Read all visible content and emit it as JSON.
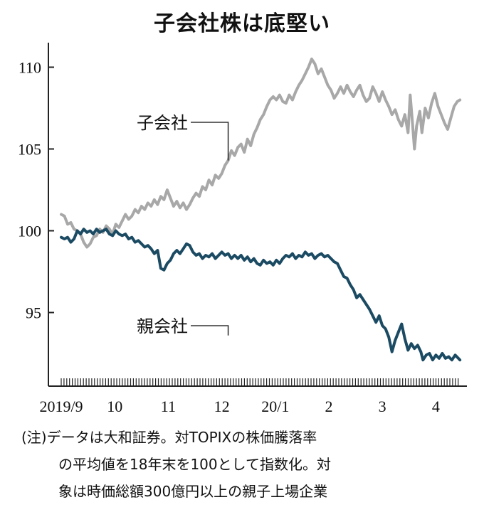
{
  "title": "子会社株は底堅い",
  "colors": {
    "subsidiary": "#a8a8a8",
    "parent": "#1b4a63",
    "axis": "#222222",
    "leader": "#333333"
  },
  "note": {
    "line1": "(注)データは大和証券。対TOPIXの株価騰落率",
    "line2": "の平均値を18年末を100として指数化。対",
    "line3": "象は時価総額300億円以上の親子上場企業"
  },
  "chart_data": {
    "type": "line",
    "title": "子会社株は底堅い",
    "xlabel": "",
    "ylabel": "",
    "ylim": [
      90.5,
      111.5
    ],
    "yticks": [
      95,
      100,
      105,
      110
    ],
    "ytick_labels": [
      "95",
      "100",
      "105",
      "110"
    ],
    "xlim": [
      0,
      7.58
    ],
    "xticks": [
      {
        "x": 0,
        "label": "2019/9"
      },
      {
        "x": 1,
        "label": "10"
      },
      {
        "x": 2,
        "label": "11"
      },
      {
        "x": 3,
        "label": "12"
      },
      {
        "x": 4,
        "label": "20/1"
      },
      {
        "x": 5,
        "label": "2"
      },
      {
        "x": 6,
        "label": "3"
      },
      {
        "x": 7,
        "label": "4"
      }
    ],
    "grid": false,
    "legend": "none (series labeled directly on chart)",
    "series": [
      {
        "name": "子会社",
        "color_key": "subsidiary",
        "label_at": {
          "x": 3.12,
          "y": 104.3
        },
        "points": [
          [
            0.0,
            101.0
          ],
          [
            0.06,
            100.9
          ],
          [
            0.12,
            100.4
          ],
          [
            0.18,
            100.5
          ],
          [
            0.24,
            100.1
          ],
          [
            0.3,
            100.0
          ],
          [
            0.36,
            99.8
          ],
          [
            0.42,
            99.3
          ],
          [
            0.48,
            99.0
          ],
          [
            0.54,
            99.2
          ],
          [
            0.6,
            99.6
          ],
          [
            0.66,
            99.7
          ],
          [
            0.72,
            100.1
          ],
          [
            0.78,
            99.9
          ],
          [
            0.84,
            100.3
          ],
          [
            0.9,
            100.1
          ],
          [
            0.96,
            99.8
          ],
          [
            1.02,
            100.4
          ],
          [
            1.08,
            100.2
          ],
          [
            1.14,
            100.6
          ],
          [
            1.2,
            101.0
          ],
          [
            1.26,
            100.7
          ],
          [
            1.32,
            100.9
          ],
          [
            1.38,
            101.3
          ],
          [
            1.44,
            101.1
          ],
          [
            1.5,
            101.5
          ],
          [
            1.56,
            101.3
          ],
          [
            1.62,
            101.7
          ],
          [
            1.68,
            101.5
          ],
          [
            1.74,
            101.9
          ],
          [
            1.8,
            101.6
          ],
          [
            1.86,
            102.1
          ],
          [
            1.92,
            101.9
          ],
          [
            1.98,
            102.5
          ],
          [
            2.04,
            102.0
          ],
          [
            2.1,
            101.5
          ],
          [
            2.16,
            101.8
          ],
          [
            2.22,
            101.4
          ],
          [
            2.28,
            101.7
          ],
          [
            2.34,
            101.3
          ],
          [
            2.4,
            101.6
          ],
          [
            2.46,
            102.0
          ],
          [
            2.52,
            102.3
          ],
          [
            2.58,
            102.1
          ],
          [
            2.64,
            102.7
          ],
          [
            2.7,
            102.5
          ],
          [
            2.76,
            103.1
          ],
          [
            2.82,
            102.8
          ],
          [
            2.88,
            103.4
          ],
          [
            2.94,
            103.2
          ],
          [
            3.0,
            103.5
          ],
          [
            3.06,
            104.0
          ],
          [
            3.12,
            104.3
          ],
          [
            3.18,
            104.9
          ],
          [
            3.24,
            104.6
          ],
          [
            3.3,
            105.1
          ],
          [
            3.36,
            105.3
          ],
          [
            3.42,
            104.8
          ],
          [
            3.48,
            105.6
          ],
          [
            3.54,
            105.2
          ],
          [
            3.6,
            105.9
          ],
          [
            3.66,
            106.3
          ],
          [
            3.72,
            106.8
          ],
          [
            3.78,
            107.1
          ],
          [
            3.84,
            107.6
          ],
          [
            3.9,
            108.0
          ],
          [
            3.96,
            108.2
          ],
          [
            4.02,
            108.0
          ],
          [
            4.08,
            108.3
          ],
          [
            4.14,
            107.9
          ],
          [
            4.2,
            107.8
          ],
          [
            4.26,
            108.3
          ],
          [
            4.32,
            108.0
          ],
          [
            4.38,
            108.5
          ],
          [
            4.44,
            108.9
          ],
          [
            4.5,
            109.2
          ],
          [
            4.56,
            109.6
          ],
          [
            4.62,
            110.0
          ],
          [
            4.68,
            110.5
          ],
          [
            4.74,
            110.2
          ],
          [
            4.8,
            109.6
          ],
          [
            4.86,
            109.9
          ],
          [
            4.92,
            109.4
          ],
          [
            4.98,
            108.9
          ],
          [
            5.04,
            108.6
          ],
          [
            5.1,
            108.1
          ],
          [
            5.16,
            108.4
          ],
          [
            5.22,
            108.8
          ],
          [
            5.28,
            108.4
          ],
          [
            5.34,
            108.9
          ],
          [
            5.4,
            108.5
          ],
          [
            5.46,
            108.2
          ],
          [
            5.52,
            108.6
          ],
          [
            5.58,
            108.9
          ],
          [
            5.64,
            108.3
          ],
          [
            5.7,
            107.9
          ],
          [
            5.76,
            108.1
          ],
          [
            5.82,
            108.8
          ],
          [
            5.88,
            108.4
          ],
          [
            5.94,
            107.9
          ],
          [
            6.0,
            108.5
          ],
          [
            6.06,
            108.0
          ],
          [
            6.12,
            107.6
          ],
          [
            6.18,
            107.1
          ],
          [
            6.24,
            107.4
          ],
          [
            6.3,
            106.8
          ],
          [
            6.36,
            106.4
          ],
          [
            6.42,
            107.1
          ],
          [
            6.48,
            106.0
          ],
          [
            6.52,
            108.3
          ],
          [
            6.56,
            106.7
          ],
          [
            6.6,
            105.0
          ],
          [
            6.64,
            106.4
          ],
          [
            6.7,
            107.3
          ],
          [
            6.74,
            106.0
          ],
          [
            6.8,
            107.5
          ],
          [
            6.86,
            106.9
          ],
          [
            6.92,
            107.8
          ],
          [
            6.98,
            108.4
          ],
          [
            7.04,
            107.6
          ],
          [
            7.1,
            107.1
          ],
          [
            7.16,
            106.6
          ],
          [
            7.22,
            106.2
          ],
          [
            7.28,
            106.9
          ],
          [
            7.34,
            107.6
          ],
          [
            7.4,
            107.9
          ],
          [
            7.45,
            108.0
          ]
        ]
      },
      {
        "name": "親会社",
        "color_key": "parent",
        "label_at": {
          "x": 3.12,
          "y": 93.6
        },
        "points": [
          [
            0.0,
            99.6
          ],
          [
            0.06,
            99.5
          ],
          [
            0.12,
            99.6
          ],
          [
            0.18,
            99.3
          ],
          [
            0.24,
            99.5
          ],
          [
            0.3,
            100.0
          ],
          [
            0.36,
            99.8
          ],
          [
            0.42,
            100.1
          ],
          [
            0.48,
            99.9
          ],
          [
            0.54,
            100.0
          ],
          [
            0.6,
            99.8
          ],
          [
            0.66,
            100.1
          ],
          [
            0.72,
            99.9
          ],
          [
            0.78,
            100.0
          ],
          [
            0.84,
            100.1
          ],
          [
            0.9,
            99.8
          ],
          [
            0.96,
            99.7
          ],
          [
            1.02,
            100.0
          ],
          [
            1.08,
            99.8
          ],
          [
            1.14,
            99.7
          ],
          [
            1.2,
            99.8
          ],
          [
            1.26,
            99.5
          ],
          [
            1.32,
            99.6
          ],
          [
            1.38,
            99.3
          ],
          [
            1.44,
            99.4
          ],
          [
            1.5,
            99.2
          ],
          [
            1.56,
            99.0
          ],
          [
            1.62,
            99.1
          ],
          [
            1.68,
            98.9
          ],
          [
            1.74,
            98.6
          ],
          [
            1.8,
            98.8
          ],
          [
            1.86,
            97.7
          ],
          [
            1.92,
            97.6
          ],
          [
            1.98,
            98.0
          ],
          [
            2.04,
            98.2
          ],
          [
            2.1,
            98.6
          ],
          [
            2.16,
            98.8
          ],
          [
            2.22,
            98.6
          ],
          [
            2.28,
            98.9
          ],
          [
            2.34,
            99.2
          ],
          [
            2.4,
            99.1
          ],
          [
            2.46,
            98.7
          ],
          [
            2.52,
            98.5
          ],
          [
            2.58,
            98.6
          ],
          [
            2.64,
            98.3
          ],
          [
            2.7,
            98.5
          ],
          [
            2.76,
            98.4
          ],
          [
            2.82,
            98.6
          ],
          [
            2.88,
            98.3
          ],
          [
            2.94,
            98.5
          ],
          [
            3.0,
            98.7
          ],
          [
            3.06,
            98.5
          ],
          [
            3.12,
            98.6
          ],
          [
            3.18,
            98.3
          ],
          [
            3.24,
            98.5
          ],
          [
            3.3,
            98.3
          ],
          [
            3.36,
            98.5
          ],
          [
            3.42,
            98.2
          ],
          [
            3.48,
            98.4
          ],
          [
            3.54,
            98.1
          ],
          [
            3.6,
            98.3
          ],
          [
            3.66,
            98.0
          ],
          [
            3.72,
            97.9
          ],
          [
            3.78,
            98.2
          ],
          [
            3.84,
            98.0
          ],
          [
            3.9,
            98.1
          ],
          [
            3.96,
            97.9
          ],
          [
            4.02,
            98.2
          ],
          [
            4.08,
            98.0
          ],
          [
            4.14,
            98.3
          ],
          [
            4.2,
            98.5
          ],
          [
            4.26,
            98.4
          ],
          [
            4.32,
            98.6
          ],
          [
            4.38,
            98.3
          ],
          [
            4.44,
            98.5
          ],
          [
            4.5,
            98.4
          ],
          [
            4.56,
            98.7
          ],
          [
            4.62,
            98.5
          ],
          [
            4.68,
            98.6
          ],
          [
            4.74,
            98.3
          ],
          [
            4.8,
            98.5
          ],
          [
            4.86,
            98.6
          ],
          [
            4.92,
            98.4
          ],
          [
            4.98,
            98.5
          ],
          [
            5.04,
            98.3
          ],
          [
            5.1,
            98.1
          ],
          [
            5.16,
            98.0
          ],
          [
            5.22,
            97.6
          ],
          [
            5.28,
            97.2
          ],
          [
            5.34,
            97.1
          ],
          [
            5.4,
            96.7
          ],
          [
            5.46,
            96.4
          ],
          [
            5.52,
            95.9
          ],
          [
            5.58,
            96.1
          ],
          [
            5.64,
            95.8
          ],
          [
            5.7,
            95.5
          ],
          [
            5.76,
            95.2
          ],
          [
            5.82,
            94.8
          ],
          [
            5.88,
            94.4
          ],
          [
            5.94,
            94.8
          ],
          [
            6.0,
            94.2
          ],
          [
            6.06,
            94.0
          ],
          [
            6.12,
            93.5
          ],
          [
            6.18,
            92.6
          ],
          [
            6.24,
            93.3
          ],
          [
            6.3,
            93.8
          ],
          [
            6.36,
            94.3
          ],
          [
            6.42,
            93.4
          ],
          [
            6.48,
            92.7
          ],
          [
            6.54,
            93.1
          ],
          [
            6.6,
            92.8
          ],
          [
            6.66,
            93.0
          ],
          [
            6.72,
            92.6
          ],
          [
            6.76,
            92.1
          ],
          [
            6.82,
            92.4
          ],
          [
            6.88,
            92.5
          ],
          [
            6.94,
            92.1
          ],
          [
            7.0,
            92.4
          ],
          [
            7.06,
            92.2
          ],
          [
            7.12,
            92.5
          ],
          [
            7.18,
            92.2
          ],
          [
            7.24,
            92.3
          ],
          [
            7.3,
            92.1
          ],
          [
            7.36,
            92.4
          ],
          [
            7.42,
            92.2
          ],
          [
            7.45,
            92.1
          ]
        ]
      }
    ]
  }
}
